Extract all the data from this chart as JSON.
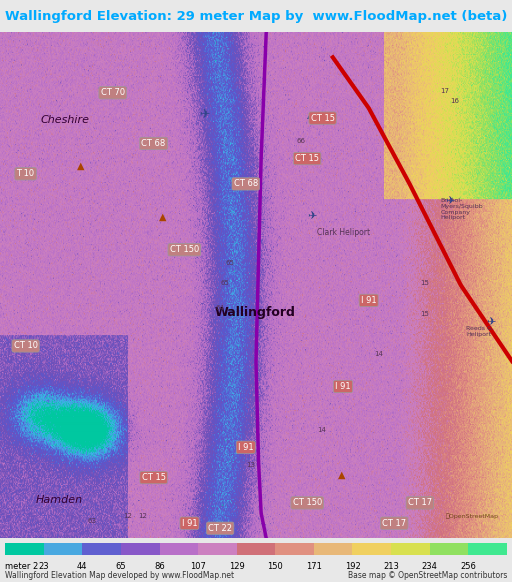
{
  "title": "Wallingford Elevation: 29 meter Map by  www.FloodMap.net (beta)",
  "title_color": "#00aaff",
  "title_bg": "#f0f0f0",
  "colorbar_labels": [
    "meter 2",
    "23",
    "44",
    "65",
    "86",
    "107",
    "129",
    "150",
    "171",
    "192",
    "213",
    "234",
    "256"
  ],
  "colorbar_colors": [
    "#00c8a0",
    "#40a0e0",
    "#6060d0",
    "#9060c0",
    "#c080d0",
    "#e08080",
    "#e06060",
    "#e8a070",
    "#f0c060",
    "#f0e040",
    "#c0e040",
    "#80e060",
    "#40e080"
  ],
  "footer_left": "Wallingford Elevation Map developed by www.FloodMap.net",
  "footer_right": "Base map © OpenStreetMap contributors",
  "map_bg_color": "#cc88cc",
  "fig_width": 5.12,
  "fig_height": 5.82,
  "dpi": 100
}
